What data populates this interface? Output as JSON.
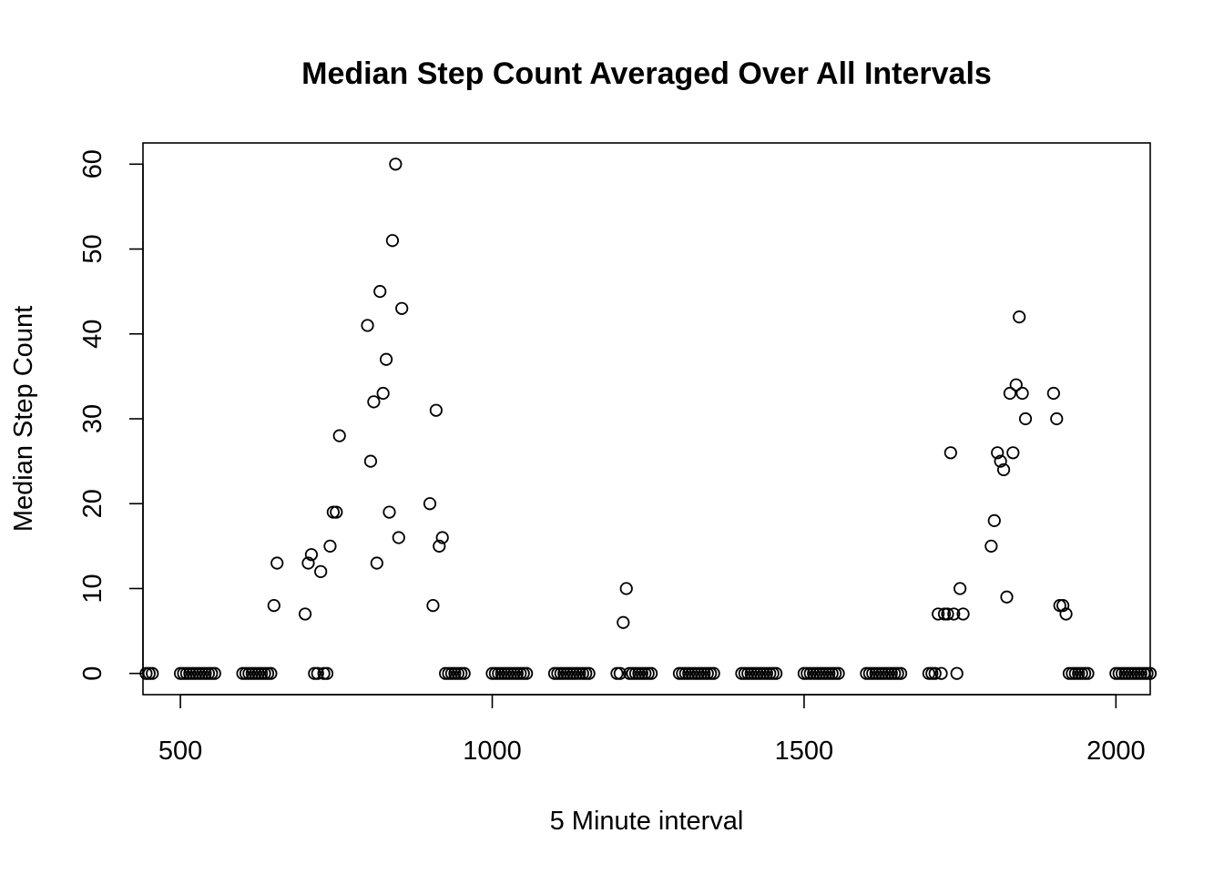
{
  "chart_data": {
    "type": "scatter",
    "title": "Median Step Count Averaged Over All Intervals",
    "xlabel": "5 Minute interval",
    "ylabel": "Median Step Count",
    "xlim": [
      440,
      2055
    ],
    "ylim": [
      -2.5,
      62.5
    ],
    "xticks": [
      500,
      1000,
      1500,
      2000
    ],
    "yticks": [
      0,
      10,
      20,
      30,
      40,
      50,
      60
    ],
    "grid": false,
    "legend": "none",
    "series": [
      {
        "points": [
          [
            445,
            0
          ],
          [
            450,
            0
          ],
          [
            455,
            0
          ],
          [
            500,
            0
          ],
          [
            505,
            0
          ],
          [
            510,
            0
          ],
          [
            515,
            0
          ],
          [
            520,
            0
          ],
          [
            525,
            0
          ],
          [
            530,
            0
          ],
          [
            535,
            0
          ],
          [
            540,
            0
          ],
          [
            545,
            0
          ],
          [
            550,
            0
          ],
          [
            555,
            0
          ],
          [
            600,
            0
          ],
          [
            605,
            0
          ],
          [
            610,
            0
          ],
          [
            615,
            0
          ],
          [
            620,
            0
          ],
          [
            625,
            0
          ],
          [
            630,
            0
          ],
          [
            635,
            0
          ],
          [
            640,
            0
          ],
          [
            645,
            0
          ],
          [
            650,
            8
          ],
          [
            655,
            13
          ],
          [
            700,
            7
          ],
          [
            705,
            13
          ],
          [
            710,
            14
          ],
          [
            715,
            0
          ],
          [
            720,
            0
          ],
          [
            725,
            12
          ],
          [
            730,
            0
          ],
          [
            735,
            0
          ],
          [
            740,
            15
          ],
          [
            745,
            19
          ],
          [
            750,
            19
          ],
          [
            755,
            28
          ],
          [
            800,
            41
          ],
          [
            805,
            25
          ],
          [
            810,
            32
          ],
          [
            815,
            13
          ],
          [
            820,
            45
          ],
          [
            825,
            33
          ],
          [
            830,
            37
          ],
          [
            835,
            19
          ],
          [
            840,
            51
          ],
          [
            845,
            60
          ],
          [
            850,
            16
          ],
          [
            855,
            43
          ],
          [
            900,
            20
          ],
          [
            905,
            8
          ],
          [
            910,
            31
          ],
          [
            915,
            15
          ],
          [
            920,
            16
          ],
          [
            925,
            0
          ],
          [
            930,
            0
          ],
          [
            935,
            0
          ],
          [
            940,
            0
          ],
          [
            945,
            0
          ],
          [
            950,
            0
          ],
          [
            955,
            0
          ],
          [
            1000,
            0
          ],
          [
            1005,
            0
          ],
          [
            1010,
            0
          ],
          [
            1015,
            0
          ],
          [
            1020,
            0
          ],
          [
            1025,
            0
          ],
          [
            1030,
            0
          ],
          [
            1035,
            0
          ],
          [
            1040,
            0
          ],
          [
            1045,
            0
          ],
          [
            1050,
            0
          ],
          [
            1055,
            0
          ],
          [
            1100,
            0
          ],
          [
            1105,
            0
          ],
          [
            1110,
            0
          ],
          [
            1115,
            0
          ],
          [
            1120,
            0
          ],
          [
            1125,
            0
          ],
          [
            1130,
            0
          ],
          [
            1135,
            0
          ],
          [
            1140,
            0
          ],
          [
            1145,
            0
          ],
          [
            1150,
            0
          ],
          [
            1155,
            0
          ],
          [
            1200,
            0
          ],
          [
            1205,
            0
          ],
          [
            1210,
            6
          ],
          [
            1215,
            10
          ],
          [
            1220,
            0
          ],
          [
            1225,
            0
          ],
          [
            1230,
            0
          ],
          [
            1235,
            0
          ],
          [
            1240,
            0
          ],
          [
            1245,
            0
          ],
          [
            1250,
            0
          ],
          [
            1255,
            0
          ],
          [
            1300,
            0
          ],
          [
            1305,
            0
          ],
          [
            1310,
            0
          ],
          [
            1315,
            0
          ],
          [
            1320,
            0
          ],
          [
            1325,
            0
          ],
          [
            1330,
            0
          ],
          [
            1335,
            0
          ],
          [
            1340,
            0
          ],
          [
            1345,
            0
          ],
          [
            1350,
            0
          ],
          [
            1355,
            0
          ],
          [
            1400,
            0
          ],
          [
            1405,
            0
          ],
          [
            1410,
            0
          ],
          [
            1415,
            0
          ],
          [
            1420,
            0
          ],
          [
            1425,
            0
          ],
          [
            1430,
            0
          ],
          [
            1435,
            0
          ],
          [
            1440,
            0
          ],
          [
            1445,
            0
          ],
          [
            1450,
            0
          ],
          [
            1455,
            0
          ],
          [
            1500,
            0
          ],
          [
            1505,
            0
          ],
          [
            1510,
            0
          ],
          [
            1515,
            0
          ],
          [
            1520,
            0
          ],
          [
            1525,
            0
          ],
          [
            1530,
            0
          ],
          [
            1535,
            0
          ],
          [
            1540,
            0
          ],
          [
            1545,
            0
          ],
          [
            1550,
            0
          ],
          [
            1555,
            0
          ],
          [
            1600,
            0
          ],
          [
            1605,
            0
          ],
          [
            1610,
            0
          ],
          [
            1615,
            0
          ],
          [
            1620,
            0
          ],
          [
            1625,
            0
          ],
          [
            1630,
            0
          ],
          [
            1635,
            0
          ],
          [
            1640,
            0
          ],
          [
            1645,
            0
          ],
          [
            1650,
            0
          ],
          [
            1655,
            0
          ],
          [
            1700,
            0
          ],
          [
            1705,
            0
          ],
          [
            1710,
            0
          ],
          [
            1715,
            7
          ],
          [
            1720,
            0
          ],
          [
            1725,
            7
          ],
          [
            1730,
            7
          ],
          [
            1735,
            26
          ],
          [
            1740,
            7
          ],
          [
            1745,
            0
          ],
          [
            1750,
            10
          ],
          [
            1755,
            7
          ],
          [
            1800,
            15
          ],
          [
            1805,
            18
          ],
          [
            1810,
            26
          ],
          [
            1815,
            25
          ],
          [
            1820,
            24
          ],
          [
            1825,
            9
          ],
          [
            1830,
            33
          ],
          [
            1835,
            26
          ],
          [
            1840,
            34
          ],
          [
            1845,
            42
          ],
          [
            1850,
            33
          ],
          [
            1855,
            30
          ],
          [
            1900,
            33
          ],
          [
            1905,
            30
          ],
          [
            1910,
            8
          ],
          [
            1915,
            8
          ],
          [
            1920,
            7
          ],
          [
            1925,
            0
          ],
          [
            1930,
            0
          ],
          [
            1935,
            0
          ],
          [
            1940,
            0
          ],
          [
            1945,
            0
          ],
          [
            1950,
            0
          ],
          [
            1955,
            0
          ],
          [
            2000,
            0
          ],
          [
            2005,
            0
          ],
          [
            2010,
            0
          ],
          [
            2015,
            0
          ],
          [
            2020,
            0
          ],
          [
            2025,
            0
          ],
          [
            2030,
            0
          ],
          [
            2035,
            0
          ],
          [
            2040,
            0
          ],
          [
            2045,
            0
          ],
          [
            2050,
            0
          ],
          [
            2055,
            0
          ]
        ]
      }
    ]
  }
}
